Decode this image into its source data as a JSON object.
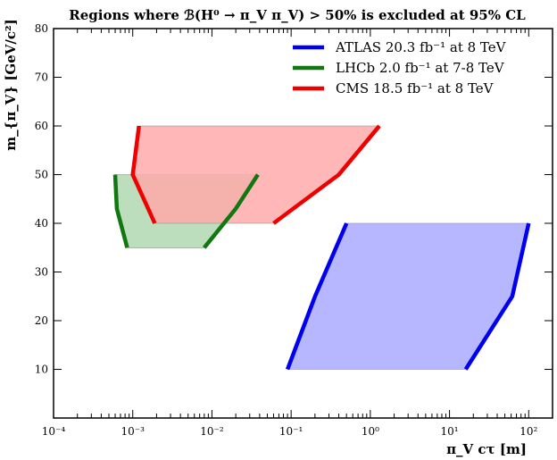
{
  "chart_data": {
    "type": "area",
    "title": "Regions where ℬ(H⁰ → π_V π_V) > 50% is excluded at 95% CL",
    "xlabel": "π_V cτ [m]",
    "ylabel": "m_{π_V} [GeV/c²]",
    "xscale": "log",
    "xlim": [
      0.0001,
      200
    ],
    "ylim": [
      0,
      80
    ],
    "x_ticks": [
      "10⁻⁴",
      "10⁻³",
      "10⁻²",
      "10⁻¹",
      "10⁰",
      "10¹",
      "10²"
    ],
    "y_ticks": [
      "10",
      "20",
      "30",
      "40",
      "50",
      "60",
      "70",
      "80"
    ],
    "grid": false,
    "legend_position": "top-right",
    "series": [
      {
        "name": "ATLAS 20.3 fb⁻¹ at 8 TeV",
        "color": "#0000ee",
        "fill": "#aaaaff",
        "left_edge": [
          [
            0.09,
            10
          ],
          [
            0.2,
            25
          ],
          [
            0.5,
            40
          ]
        ],
        "right_edge": [
          [
            16,
            10
          ],
          [
            62,
            25
          ],
          [
            100,
            40
          ]
        ]
      },
      {
        "name": "LHCb 2.0 fb⁻¹ at 7-8 TeV",
        "color": "#117711",
        "fill": "#b0d8b0",
        "left_edge": [
          [
            0.00085,
            35
          ],
          [
            0.00063,
            43
          ],
          [
            0.0006,
            50
          ]
        ],
        "right_edge": [
          [
            0.008,
            35
          ],
          [
            0.02,
            43
          ],
          [
            0.038,
            50
          ]
        ]
      },
      {
        "name": "CMS 18.5 fb⁻¹ at 8 TeV",
        "color": "#ee0000",
        "fill": "#ffaaaa",
        "left_edge": [
          [
            0.0019,
            40
          ],
          [
            0.001,
            50
          ],
          [
            0.0012,
            60
          ]
        ],
        "right_edge": [
          [
            0.06,
            40
          ],
          [
            0.4,
            50
          ],
          [
            1.3,
            60
          ]
        ]
      }
    ]
  }
}
